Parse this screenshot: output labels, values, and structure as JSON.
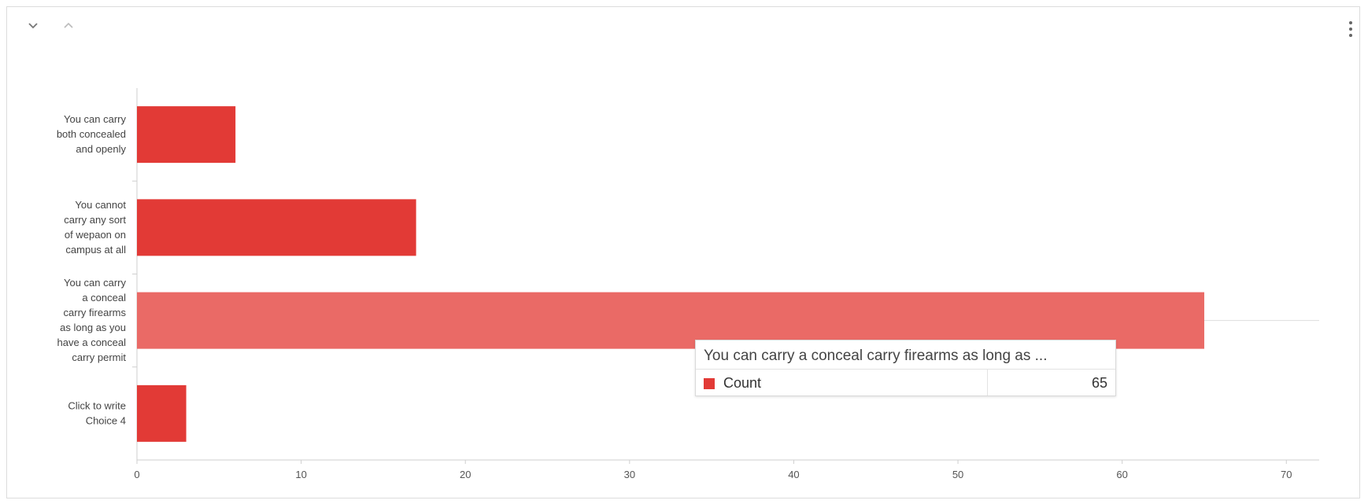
{
  "colors": {
    "bar": "#e23a36",
    "bar_highlight": "#ea6a66",
    "axis": "#cfcfcf",
    "text": "#444444"
  },
  "toolbar": {
    "collapse_icon": "chevron-down-icon",
    "expand_icon": "chevron-up-icon",
    "menu_icon": "vertical-ellipsis-icon"
  },
  "chart_data": {
    "type": "bar",
    "orientation": "horizontal",
    "categories": [
      "You can carry both concealed and openly",
      "You cannot carry any sort of wepaon on campus at all",
      "You can carry a conceal carry firearms as long as you have a conceal carry permit",
      "Click to write Choice 4"
    ],
    "category_lines": [
      [
        "You can carry",
        "both concealed",
        "and openly"
      ],
      [
        "You cannot",
        "carry any sort",
        "of wepaon on",
        "campus at all"
      ],
      [
        "You can carry",
        "a conceal",
        "carry firearms",
        "as long as you",
        "have a conceal",
        "carry permit"
      ],
      [
        "Click to write",
        "Choice 4"
      ]
    ],
    "series": [
      {
        "name": "Count",
        "values": [
          6,
          17,
          65,
          3
        ]
      }
    ],
    "xlim": [
      0,
      72
    ],
    "xticks": [
      "0",
      "10",
      "20",
      "30",
      "40",
      "50",
      "60",
      "70"
    ],
    "highlighted_index": 2,
    "grid": false,
    "legend": "none",
    "tooltip": {
      "title": "You can carry a conceal carry firearms as long as ...",
      "series": "Count",
      "value": "65"
    }
  }
}
